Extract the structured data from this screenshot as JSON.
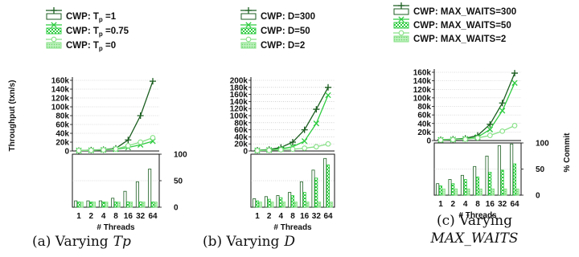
{
  "colors": {
    "series1": "#1b5e20",
    "series2": "#2ecc40",
    "series3": "#86e086",
    "grid": "#bbbbbb"
  },
  "chart_data": [
    {
      "type": "line",
      "caption": "(a) Varying",
      "caption_var": "Tp",
      "legend": [
        {
          "lbl": "CWP: T",
          "sub": "p",
          "val": " =1"
        },
        {
          "lbl": "CWP: T",
          "sub": "p",
          "val": " =0.75"
        },
        {
          "lbl": "CWP: T",
          "sub": "p",
          "val": " =0"
        }
      ],
      "ylabel": "Throughput (txn/s)",
      "xlabel": "# Threads",
      "x": [
        "1",
        "2",
        "4",
        "8",
        "16",
        "32",
        "64"
      ],
      "yticks": [
        "0",
        "20k",
        "40k",
        "60k",
        "80k",
        "100k",
        "120k",
        "140k",
        "160k"
      ],
      "ylim": [
        0,
        160000
      ],
      "series": [
        {
          "values": [
            1000,
            2000,
            3000,
            6000,
            25000,
            80000,
            158000
          ]
        },
        {
          "values": [
            1000,
            1500,
            2500,
            4000,
            8000,
            14000,
            22000
          ]
        },
        {
          "values": [
            1000,
            1500,
            2500,
            4500,
            12000,
            20000,
            30000
          ]
        }
      ],
      "commit": {
        "yticks": [
          "0",
          "50",
          "100"
        ],
        "ylim": [
          0,
          100
        ],
        "values": [
          [
            12,
            12,
            12,
            17,
            30,
            48,
            72
          ],
          [
            10,
            10,
            10,
            10,
            10,
            10,
            10
          ],
          [
            10,
            10,
            10,
            10,
            10,
            10,
            10
          ]
        ]
      }
    },
    {
      "type": "line",
      "caption": "(b) Varying",
      "caption_var": "D",
      "legend": [
        {
          "lbl": "CWP: D=300",
          "sub": "",
          "val": ""
        },
        {
          "lbl": "CWP: D=50",
          "sub": "",
          "val": ""
        },
        {
          "lbl": "CWP: D=2",
          "sub": "",
          "val": ""
        }
      ],
      "ylabel": "",
      "xlabel": "# Threads",
      "x": [
        "1",
        "2",
        "4",
        "8",
        "16",
        "32",
        "64"
      ],
      "yticks": [
        "0",
        "20k",
        "40k",
        "60k",
        "80k",
        "100k",
        "120k",
        "140k",
        "160k",
        "180k",
        "200k"
      ],
      "ylim": [
        0,
        200000
      ],
      "series": [
        {
          "values": [
            2000,
            4000,
            10000,
            25000,
            60000,
            118000,
            180000
          ]
        },
        {
          "values": [
            1500,
            3000,
            6000,
            12000,
            28000,
            78000,
            158000
          ]
        },
        {
          "values": [
            1000,
            2000,
            3500,
            5000,
            8000,
            12000,
            20000
          ]
        }
      ],
      "commit": {
        "yticks": [
          "0",
          "50",
          "100"
        ],
        "ylim": [
          0,
          100
        ],
        "values": [
          [
            16,
            20,
            22,
            28,
            48,
            70,
            92
          ],
          [
            12,
            15,
            18,
            22,
            28,
            55,
            80
          ],
          [
            10,
            10,
            10,
            10,
            10,
            10,
            10
          ]
        ]
      }
    },
    {
      "type": "line",
      "caption": "(c) Varying",
      "caption_var": "MAX_WAITS",
      "legend": [
        {
          "lbl": "CWP: MAX_WAITS=300",
          "sub": "",
          "val": ""
        },
        {
          "lbl": "CWP: MAX_WAITS=50",
          "sub": "",
          "val": ""
        },
        {
          "lbl": "CWP: MAX_WAITS=2",
          "sub": "",
          "val": ""
        }
      ],
      "ylabel": "",
      "y2label": "% Commit",
      "xlabel": "# Threads",
      "x": [
        "1",
        "2",
        "4",
        "8",
        "16",
        "32",
        "64"
      ],
      "yticks": [
        "0",
        "20k",
        "40k",
        "60k",
        "80k",
        "100k",
        "120k",
        "140k",
        "160k"
      ],
      "ylim": [
        0,
        160000
      ],
      "series": [
        {
          "values": [
            2000,
            3000,
            5000,
            12000,
            38000,
            88000,
            158000
          ]
        },
        {
          "values": [
            1500,
            2500,
            4000,
            8000,
            26000,
            70000,
            135000
          ]
        },
        {
          "values": [
            1000,
            2000,
            3000,
            6000,
            12000,
            22000,
            35000
          ]
        }
      ],
      "commit": {
        "yticks": [
          "0",
          "50",
          "100"
        ],
        "ylim": [
          0,
          100
        ],
        "values": [
          [
            22,
            30,
            38,
            55,
            75,
            95,
            98
          ],
          [
            18,
            22,
            30,
            35,
            44,
            48,
            60
          ],
          [
            12,
            12,
            12,
            12,
            12,
            12,
            12
          ]
        ]
      }
    }
  ]
}
